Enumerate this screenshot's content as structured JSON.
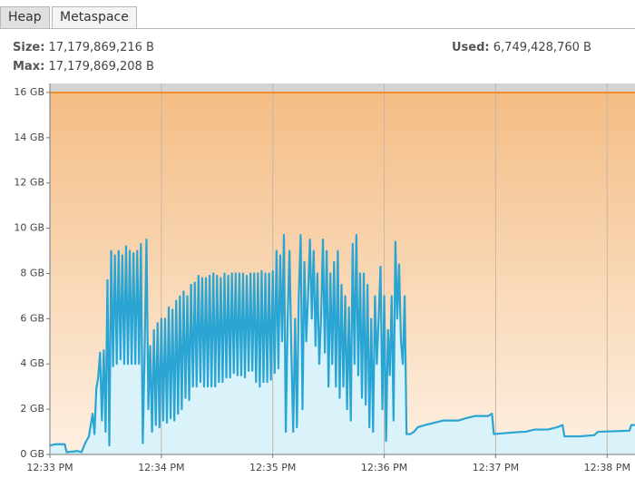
{
  "tabs": [
    "Heap",
    "Metaspace"
  ],
  "info": {
    "size": {
      "label": "Size:",
      "value": "17,179,869,216 B"
    },
    "max": {
      "label": "Max:",
      "value": "17,179,869,208 B"
    },
    "used": {
      "label": "Used:",
      "value": "6,749,428,760 B"
    }
  },
  "chart_data": {
    "type": "area",
    "xlim": [
      0,
      315
    ],
    "ylim": [
      0,
      16.4
    ],
    "grid": "x",
    "xticks": [
      {
        "value": 0,
        "label": "12:33 PM"
      },
      {
        "value": 60,
        "label": "12:34 PM"
      },
      {
        "value": 120,
        "label": "12:35 PM"
      },
      {
        "value": 180,
        "label": "12:36 PM"
      },
      {
        "value": 240,
        "label": "12:37 PM"
      },
      {
        "value": 300,
        "label": "12:38 PM"
      }
    ],
    "yticks": [
      {
        "value": 0,
        "label": "0 GB"
      },
      {
        "value": 2,
        "label": "2 GB"
      },
      {
        "value": 4,
        "label": "4 GB"
      },
      {
        "value": 6,
        "label": "6 GB"
      },
      {
        "value": 8,
        "label": "8 GB"
      },
      {
        "value": 10,
        "label": "10 GB"
      },
      {
        "value": 12,
        "label": "12 GB"
      },
      {
        "value": 14,
        "label": "14 GB"
      },
      {
        "value": 16,
        "label": "16 GB"
      }
    ],
    "series": [
      {
        "color": "#ef8f2a",
        "fill": "#f4bd85",
        "x": [
          0,
          315
        ],
        "values": [
          16,
          16
        ]
      },
      {
        "color": "#2aa5d3",
        "fill": "#daf3fb",
        "x": [
          0,
          3,
          8,
          9,
          15,
          17,
          19,
          21,
          23,
          24,
          25,
          26,
          27,
          28,
          29,
          30,
          31,
          32,
          33,
          34,
          35,
          36,
          37,
          38,
          39,
          40,
          41,
          42,
          43,
          44,
          45,
          46,
          47,
          48,
          49,
          50,
          51,
          52,
          53,
          54,
          55,
          56,
          57,
          58,
          59,
          60,
          61,
          62,
          63,
          64,
          65,
          66,
          67,
          68,
          69,
          70,
          71,
          72,
          73,
          74,
          75,
          76,
          77,
          78,
          79,
          80,
          81,
          82,
          83,
          84,
          85,
          86,
          87,
          88,
          89,
          90,
          91,
          92,
          93,
          94,
          95,
          96,
          97,
          98,
          99,
          100,
          101,
          102,
          103,
          104,
          105,
          106,
          107,
          108,
          109,
          110,
          111,
          112,
          113,
          114,
          115,
          116,
          117,
          118,
          119,
          120,
          121,
          122,
          123,
          124,
          125,
          126,
          127,
          128,
          129,
          130,
          131,
          132,
          133,
          134,
          135,
          136,
          137,
          138,
          139,
          140,
          141,
          142,
          143,
          144,
          145,
          146,
          147,
          148,
          149,
          150,
          151,
          152,
          153,
          154,
          155,
          156,
          157,
          158,
          159,
          160,
          161,
          162,
          163,
          164,
          165,
          166,
          167,
          168,
          169,
          170,
          171,
          172,
          173,
          174,
          175,
          176,
          177,
          178,
          179,
          180,
          181,
          182,
          183,
          184,
          185,
          186,
          187,
          188,
          189,
          190,
          191,
          192,
          194,
          196,
          198,
          202,
          207,
          212,
          217,
          220,
          224,
          229,
          236,
          238,
          239,
          246,
          254,
          256,
          261,
          268,
          273,
          276,
          277,
          285,
          293,
          295,
          312,
          313,
          315
        ],
        "values": [
          0.4,
          0.45,
          0.45,
          0.1,
          0.15,
          0.1,
          0.5,
          0.8,
          1.8,
          0.9,
          2.9,
          3.4,
          4.5,
          1.5,
          4.6,
          1.0,
          7.7,
          0.4,
          9.0,
          3.9,
          8.8,
          4.0,
          9.0,
          4.2,
          8.8,
          4.0,
          9.2,
          4.0,
          9.0,
          4.0,
          8.9,
          4.0,
          9.0,
          4.0,
          9.3,
          0.5,
          4.5,
          9.5,
          2.0,
          4.8,
          1.0,
          5.5,
          1.3,
          5.8,
          1.2,
          6.0,
          1.5,
          6.0,
          1.4,
          6.5,
          1.6,
          6.4,
          1.5,
          6.8,
          1.8,
          7.0,
          2.0,
          7.2,
          2.5,
          7.0,
          2.4,
          7.5,
          3.0,
          7.6,
          3.0,
          7.9,
          3.2,
          7.8,
          3.0,
          7.8,
          3.0,
          7.9,
          3.0,
          8.0,
          3.0,
          7.9,
          3.2,
          7.8,
          3.2,
          8.0,
          3.4,
          7.9,
          3.4,
          8.0,
          3.6,
          8.0,
          3.5,
          8.0,
          3.5,
          8.0,
          3.4,
          7.9,
          3.7,
          8.0,
          3.7,
          8.0,
          3.2,
          8.0,
          3.0,
          8.1,
          3.2,
          8.0,
          3.2,
          8.0,
          3.3,
          8.1,
          3.6,
          9.0,
          3.8,
          8.8,
          5.0,
          9.7,
          1.0,
          6.0,
          9.0,
          4.5,
          1.0,
          6.0,
          1.2,
          7.0,
          9.7,
          2.0,
          8.5,
          5.0,
          7.0,
          9.5,
          6.0,
          9.0,
          4.8,
          8.0,
          4.0,
          6.0,
          9.5,
          4.5,
          9.0,
          3.0,
          8.0,
          4.0,
          8.5,
          3.0,
          9.0,
          2.5,
          7.5,
          3.0,
          7.0,
          2.0,
          6.5,
          1.5,
          9.3,
          4.0,
          9.7,
          3.5,
          8.0,
          2.5,
          8.0,
          2.2,
          7.5,
          1.2,
          6.0,
          1.0,
          7.0,
          4.0,
          6.0,
          8.3,
          2.0,
          7.0,
          0.6,
          5.5,
          3.5,
          7.0,
          1.5,
          9.4,
          6.0,
          8.4,
          5.0,
          4.0,
          7.0,
          0.9,
          0.9,
          1.0,
          1.2,
          1.3,
          1.4,
          1.5,
          1.5,
          1.5,
          1.6,
          1.7,
          1.7,
          1.8,
          0.9,
          0.95,
          1.0,
          1.0,
          1.1,
          1.1,
          1.2,
          1.3,
          0.8,
          0.8,
          0.85,
          1.0,
          1.05,
          1.3,
          1.3
        ]
      }
    ]
  }
}
